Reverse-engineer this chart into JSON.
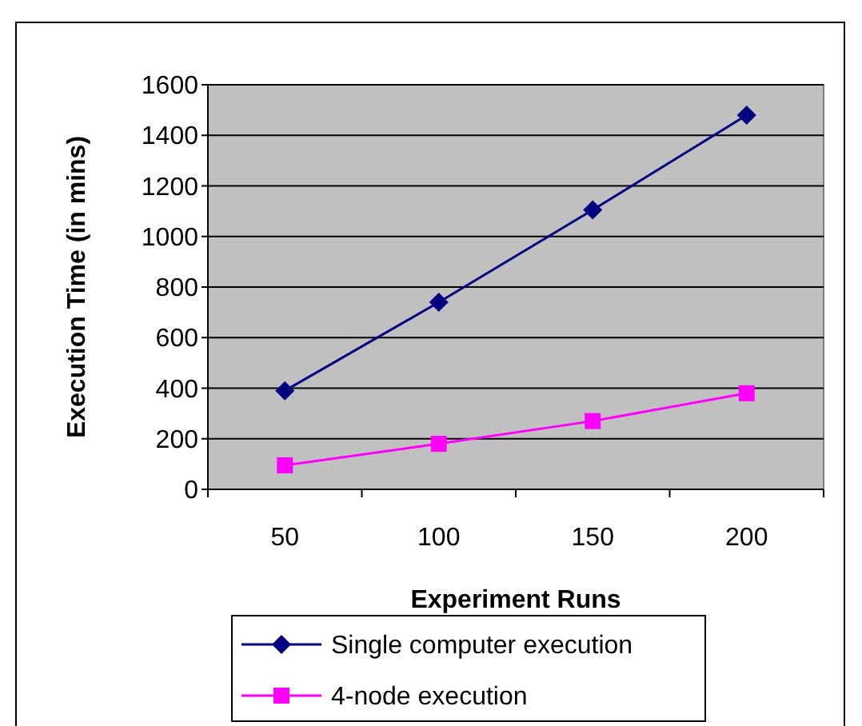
{
  "chart_data": {
    "type": "line",
    "xlabel": "Experiment Runs",
    "ylabel": "Execution Time (in mins)",
    "categories": [
      "50",
      "100",
      "150",
      "200"
    ],
    "ylim": [
      0,
      1600
    ],
    "yticks": [
      0,
      200,
      400,
      600,
      800,
      1000,
      1200,
      1400,
      1600
    ],
    "grid": "y",
    "legend": "bottom",
    "series": [
      {
        "name": "Single computer execution",
        "color": "#000080",
        "marker": "diamond",
        "values": [
          390,
          740,
          1105,
          1480
        ]
      },
      {
        "name": "4-node execution",
        "color": "#ff00ff",
        "marker": "square",
        "values": [
          95,
          180,
          270,
          380
        ]
      }
    ]
  }
}
